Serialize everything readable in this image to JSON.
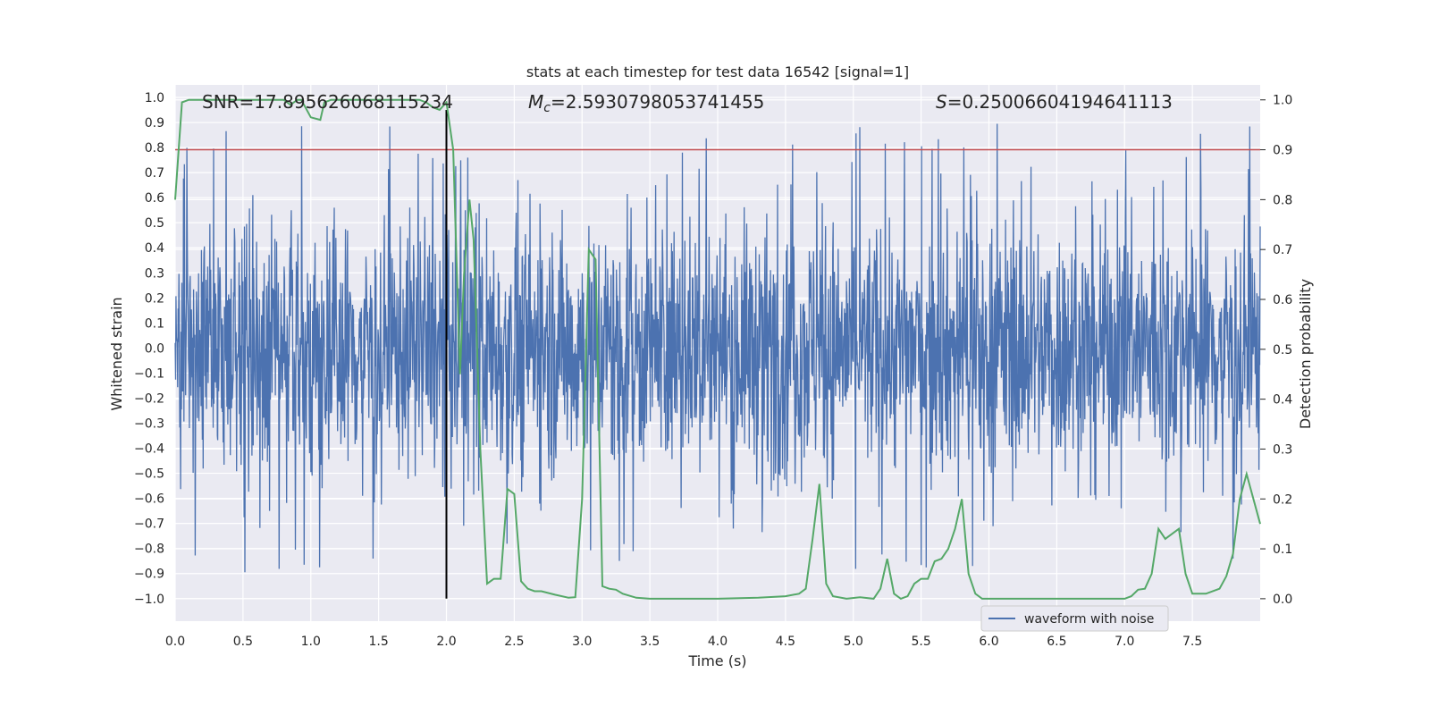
{
  "chart_data": {
    "type": "line",
    "title": "stats at each timestep for test data 16542 [signal=1]",
    "xlabel": "Time (s)",
    "ylabel": "Whitened strain",
    "ylabel_right": "Detection probability",
    "xlim": [
      0.0,
      8.0
    ],
    "ylim": [
      -1.09,
      1.05
    ],
    "ylim_right": [
      -0.045,
      1.03
    ],
    "x_ticks": [
      "0.0",
      "0.5",
      "1.0",
      "1.5",
      "2.0",
      "2.5",
      "3.0",
      "3.5",
      "4.0",
      "4.5",
      "5.0",
      "5.5",
      "6.0",
      "6.5",
      "7.0",
      "7.5"
    ],
    "y_ticks": [
      "1.0",
      "0.9",
      "0.8",
      "0.7",
      "0.6",
      "0.5",
      "0.4",
      "0.3",
      "0.2",
      "0.1",
      "0.0",
      "−0.1",
      "−0.2",
      "−0.3",
      "−0.4",
      "−0.5",
      "−0.6",
      "−0.7",
      "−0.8",
      "−0.9",
      "−1.0"
    ],
    "y_tick_values": [
      1.0,
      0.9,
      0.8,
      0.7,
      0.6,
      0.5,
      0.4,
      0.3,
      0.2,
      0.1,
      0.0,
      -0.1,
      -0.2,
      -0.3,
      -0.4,
      -0.5,
      -0.6,
      -0.7,
      -0.8,
      -0.9,
      -1.0
    ],
    "y_right_ticks": [
      "1.0",
      "0.9",
      "0.8",
      "0.7",
      "0.6",
      "0.5",
      "0.4",
      "0.3",
      "0.2",
      "0.1",
      "0.0"
    ],
    "y_right_tick_values": [
      1.0,
      0.9,
      0.8,
      0.7,
      0.6,
      0.5,
      0.4,
      0.3,
      0.2,
      0.1,
      0.0
    ],
    "annotations": {
      "snr": "SNR=17.895626068115234",
      "mc_symbol": "M",
      "mc_sub": "c",
      "mc_value": "=2.5930798053741455",
      "s_symbol": "S",
      "s_value": "=0.25006604194641113"
    },
    "legend": {
      "label": "waveform with noise",
      "placement": "lower-right"
    },
    "colors": {
      "waveform": "#4c72b0",
      "probability": "#55a868",
      "threshold": "#c44e52",
      "marker": "#000000",
      "background": "#eaeaf2",
      "grid": "#ffffff"
    },
    "threshold_right": 0.9,
    "signal_marker_x": 2.0,
    "series": [
      {
        "name": "waveform with noise",
        "axis": "left",
        "note": "dense noisy whitened strain, approx. envelope between -1.0 and 0.95"
      },
      {
        "axis": "right",
        "x": [
          0.0,
          0.05,
          0.1,
          0.2,
          0.3,
          0.4,
          0.5,
          0.6,
          0.7,
          0.8,
          0.85,
          0.9,
          0.93,
          1.0,
          1.07,
          1.1,
          1.15,
          1.2,
          1.3,
          1.4,
          1.5,
          1.6,
          1.7,
          1.8,
          1.85,
          1.9,
          1.95,
          2.0,
          2.05,
          2.07,
          2.1,
          2.13,
          2.17,
          2.2,
          2.25,
          2.3,
          2.35,
          2.4,
          2.45,
          2.5,
          2.55,
          2.6,
          2.65,
          2.7,
          2.8,
          2.9,
          2.95,
          3.0,
          3.05,
          3.1,
          3.15,
          3.2,
          3.25,
          3.3,
          3.4,
          3.5,
          4.0,
          4.3,
          4.5,
          4.6,
          4.65,
          4.7,
          4.75,
          4.8,
          4.85,
          4.95,
          5.05,
          5.15,
          5.2,
          5.25,
          5.3,
          5.35,
          5.4,
          5.45,
          5.5,
          5.55,
          5.6,
          5.65,
          5.7,
          5.75,
          5.8,
          5.85,
          5.9,
          5.95,
          6.0,
          6.5,
          6.8,
          6.9,
          7.0,
          7.05,
          7.1,
          7.15,
          7.2,
          7.25,
          7.3,
          7.35,
          7.4,
          7.45,
          7.5,
          7.55,
          7.6,
          7.7,
          7.75,
          7.8,
          7.85,
          7.9,
          7.95,
          8.0
        ],
        "y": [
          0.8,
          0.995,
          1.0,
          1.0,
          1.0,
          1.0,
          1.0,
          1.0,
          1.0,
          1.0,
          0.99,
          1.0,
          1.0,
          0.965,
          0.96,
          0.995,
          1.0,
          1.0,
          1.0,
          1.0,
          1.0,
          1.0,
          1.0,
          1.0,
          0.995,
          0.985,
          0.98,
          0.995,
          0.9,
          0.72,
          0.45,
          0.65,
          0.8,
          0.72,
          0.3,
          0.03,
          0.04,
          0.04,
          0.22,
          0.21,
          0.035,
          0.02,
          0.015,
          0.015,
          0.008,
          0.002,
          0.003,
          0.2,
          0.7,
          0.68,
          0.025,
          0.02,
          0.018,
          0.01,
          0.002,
          0.0,
          0.0,
          0.002,
          0.005,
          0.01,
          0.02,
          0.12,
          0.23,
          0.03,
          0.005,
          0.0,
          0.003,
          0.0,
          0.02,
          0.08,
          0.01,
          0.0,
          0.005,
          0.03,
          0.04,
          0.04,
          0.075,
          0.08,
          0.1,
          0.14,
          0.2,
          0.05,
          0.01,
          0.0,
          0.0,
          0.0,
          0.0,
          0.0,
          0.0,
          0.005,
          0.018,
          0.02,
          0.05,
          0.14,
          0.12,
          0.13,
          0.14,
          0.05,
          0.01,
          0.01,
          0.01,
          0.02,
          0.045,
          0.09,
          0.2,
          0.25,
          0.2,
          0.15
        ]
      }
    ]
  }
}
